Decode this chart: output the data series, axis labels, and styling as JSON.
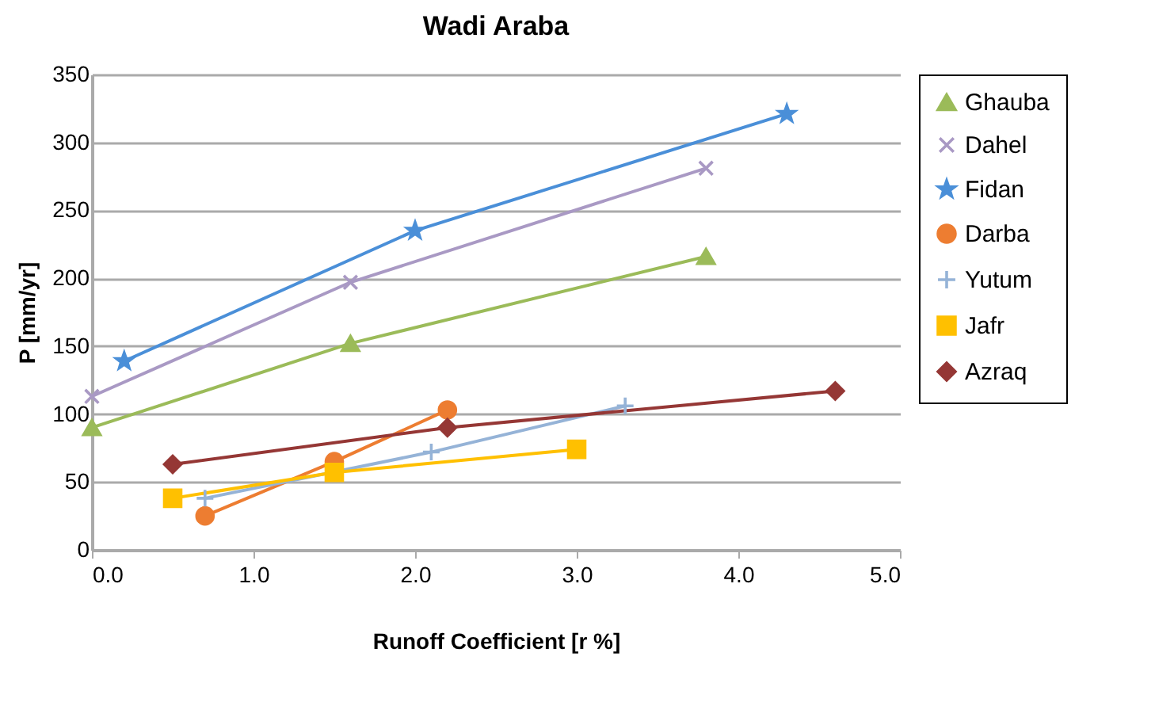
{
  "chart_data": {
    "type": "line",
    "title": "Wadi Araba",
    "xlabel": "Runoff Coefficient [r %]",
    "ylabel": "P [mm/yr]",
    "xlim": [
      0,
      5
    ],
    "xticks": [
      {
        "value": 0,
        "label": "0.0"
      },
      {
        "value": 1,
        "label": "1.0"
      },
      {
        "value": 2,
        "label": "2.0"
      },
      {
        "value": 3,
        "label": "3.0"
      },
      {
        "value": 4,
        "label": "4.0"
      },
      {
        "value": 5,
        "label": "5.0"
      }
    ],
    "ylim": [
      0,
      350
    ],
    "yticks": [
      0,
      50,
      100,
      150,
      200,
      250,
      300,
      350
    ],
    "grid": "y",
    "legend": "right",
    "series": [
      {
        "name": "Ghauba",
        "color": "#9bbb59",
        "marker": "triangle",
        "x": [
          0,
          1.6,
          3.8
        ],
        "values": [
          90,
          152,
          216
        ]
      },
      {
        "name": "Dahel",
        "color": "#a999c4",
        "marker": "cross",
        "x": [
          0,
          1.6,
          3.8
        ],
        "values": [
          113,
          197,
          281
        ]
      },
      {
        "name": "Fidan",
        "color": "#4a8fd8",
        "marker": "star",
        "x": [
          0.2,
          2.0,
          4.3
        ],
        "values": [
          139,
          235,
          321
        ]
      },
      {
        "name": "Darba",
        "color": "#ed7d31",
        "marker": "circle",
        "x": [
          0.7,
          1.5,
          2.2
        ],
        "values": [
          25,
          65,
          103
        ]
      },
      {
        "name": "Yutum",
        "color": "#95b3d7",
        "marker": "plus",
        "x": [
          0.7,
          2.1,
          3.3
        ],
        "values": [
          38,
          72,
          106
        ]
      },
      {
        "name": "Jafr",
        "color": "#ffc000",
        "marker": "square",
        "x": [
          0.5,
          1.5,
          3.0
        ],
        "values": [
          38,
          57,
          74
        ]
      },
      {
        "name": "Azraq",
        "color": "#953735",
        "marker": "diamond",
        "x": [
          0.5,
          2.2,
          4.6
        ],
        "values": [
          63,
          90,
          117
        ]
      }
    ]
  }
}
